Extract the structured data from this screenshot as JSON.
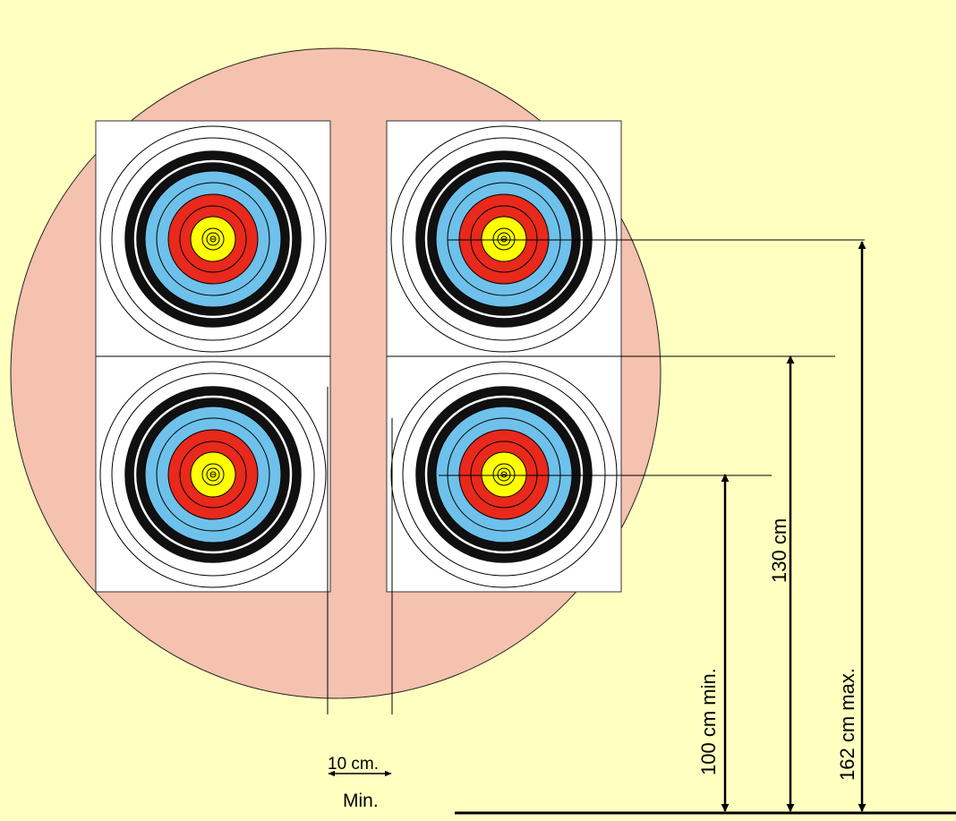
{
  "diagram": {
    "labels": {
      "gap": "10 cm.",
      "gap_qualifier": "Min.",
      "height_min": "100 cm min.",
      "height_mid": "130 cm",
      "height_max": "162 cm max."
    },
    "colors": {
      "background": "#ffffc0",
      "backdrop": "#f4c2ae",
      "face": "#ffffff",
      "ring_black": "#101010",
      "ring_blue": "#6ec1ea",
      "ring_red": "#e8291c",
      "ring_gold": "#ffff00",
      "line": "#000000"
    },
    "target_faces": [
      {
        "name": "top-left"
      },
      {
        "name": "top-right"
      },
      {
        "name": "bottom-left"
      },
      {
        "name": "bottom-right"
      }
    ]
  }
}
